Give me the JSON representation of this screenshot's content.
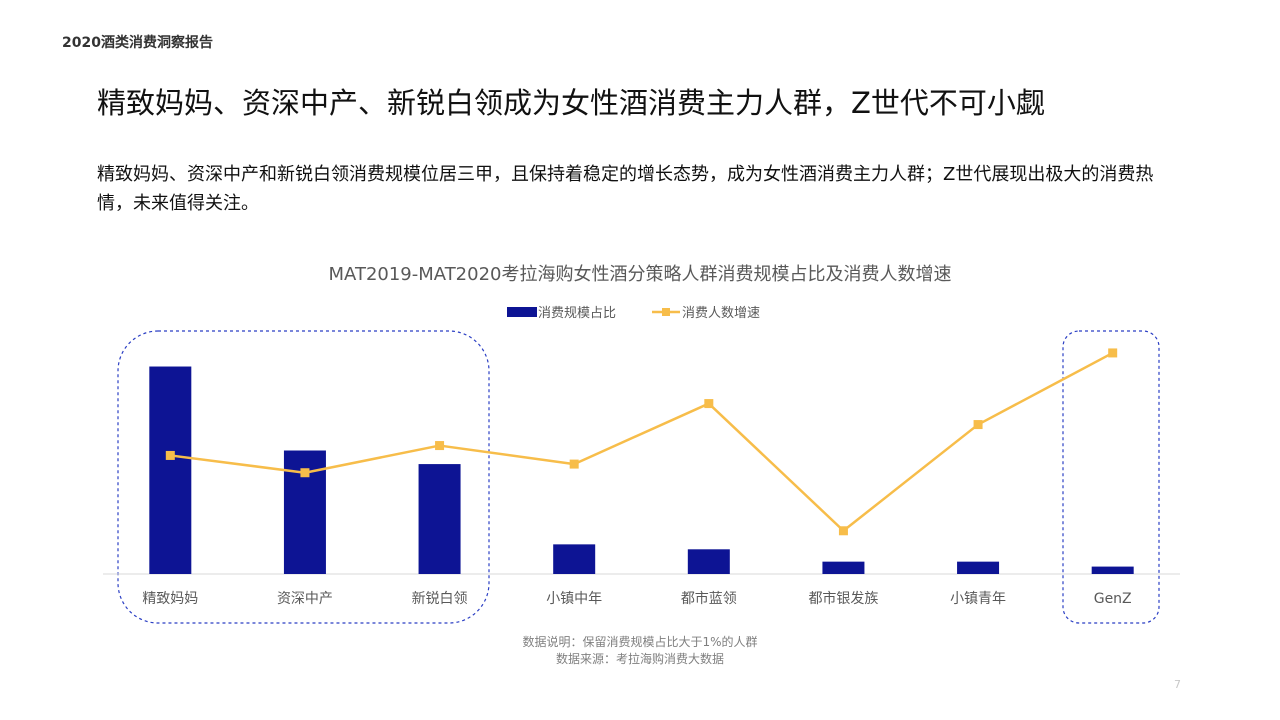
{
  "report_label": "2020酒类消费洞察报告",
  "headline": "精致妈妈、资深中产、新锐白领成为女性酒消费主力人群，Z世代不可小觑",
  "summary": "精致妈妈、资深中产和新锐白领消费规模位居三甲，且保持着稳定的增长态势，成为女性酒消费主力人群；Z世代展现出极大的消费热情，未来值得关注。",
  "page_number": "7",
  "chart_data": {
    "type": "bar",
    "title": "MAT2019-MAT2020考拉海购女性酒分策略人群消费规模占比及消费人数增速",
    "categories": [
      "精致妈妈",
      "资深中产",
      "新锐白领",
      "小镇中年",
      "都市蓝领",
      "都市银发族",
      "小镇青年",
      "GenZ"
    ],
    "series": [
      {
        "name": "消费规模占比",
        "kind": "bar",
        "color": "#0d1494",
        "values": [
          0.84,
          0.5,
          0.445,
          0.12,
          0.1,
          0.05,
          0.05,
          0.03
        ]
      },
      {
        "name": "消费人数增速",
        "kind": "line",
        "color": "#f7bd4a",
        "values": [
          0.48,
          0.41,
          0.52,
          0.445,
          0.69,
          0.175,
          0.605,
          0.895
        ]
      }
    ],
    "ylim": [
      0,
      1
    ],
    "ylabel": "",
    "xlabel": "",
    "grid": false,
    "legend": "top-center",
    "highlight_groups": [
      [
        "精致妈妈",
        "资深中产",
        "新锐白领"
      ],
      [
        "GenZ"
      ]
    ],
    "notes": [
      "数据说明：保留消费规模占比大于1%的人群",
      "数据来源：考拉海购消费大数据"
    ]
  }
}
